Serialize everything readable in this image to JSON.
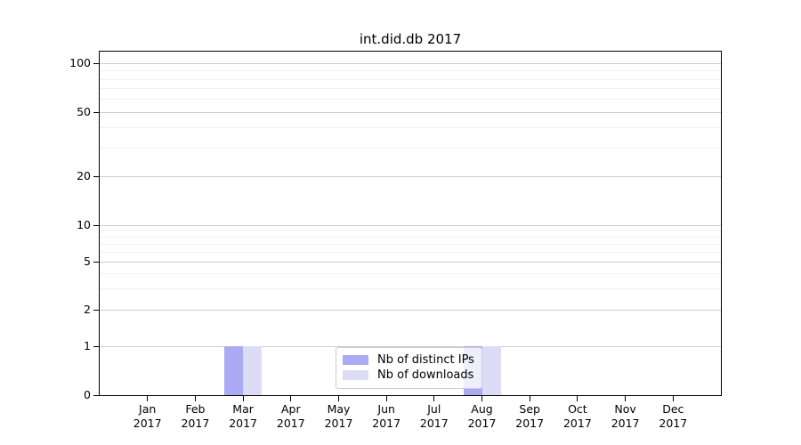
{
  "chart_data": {
    "type": "bar",
    "title": "int.did.db 2017",
    "categories": [
      "Jan",
      "Feb",
      "Mar",
      "Apr",
      "May",
      "Jun",
      "Jul",
      "Aug",
      "Sep",
      "Oct",
      "Nov",
      "Dec"
    ],
    "category_year": "2017",
    "series": [
      {
        "name": "Nb of distinct IPs",
        "color": "#aaaaf5",
        "values": [
          0,
          0,
          1,
          0,
          0,
          0,
          0,
          1,
          0,
          0,
          0,
          0
        ]
      },
      {
        "name": "Nb of downloads",
        "color": "#dcdcf7",
        "values": [
          0,
          0,
          1,
          0,
          0,
          0,
          0,
          1,
          0,
          0,
          0,
          0
        ]
      }
    ],
    "y_axis": {
      "scale": "symlog",
      "ticks": [
        0,
        1,
        2,
        5,
        10,
        20,
        50,
        100
      ],
      "range": [
        0,
        100
      ],
      "grid_major": [
        1,
        2,
        5,
        10,
        20,
        50,
        100
      ],
      "grid_minor": [
        3,
        4,
        6,
        7,
        8,
        9,
        30,
        40,
        60,
        70,
        80,
        90
      ]
    },
    "legend_position": "lower center",
    "grid": true
  }
}
